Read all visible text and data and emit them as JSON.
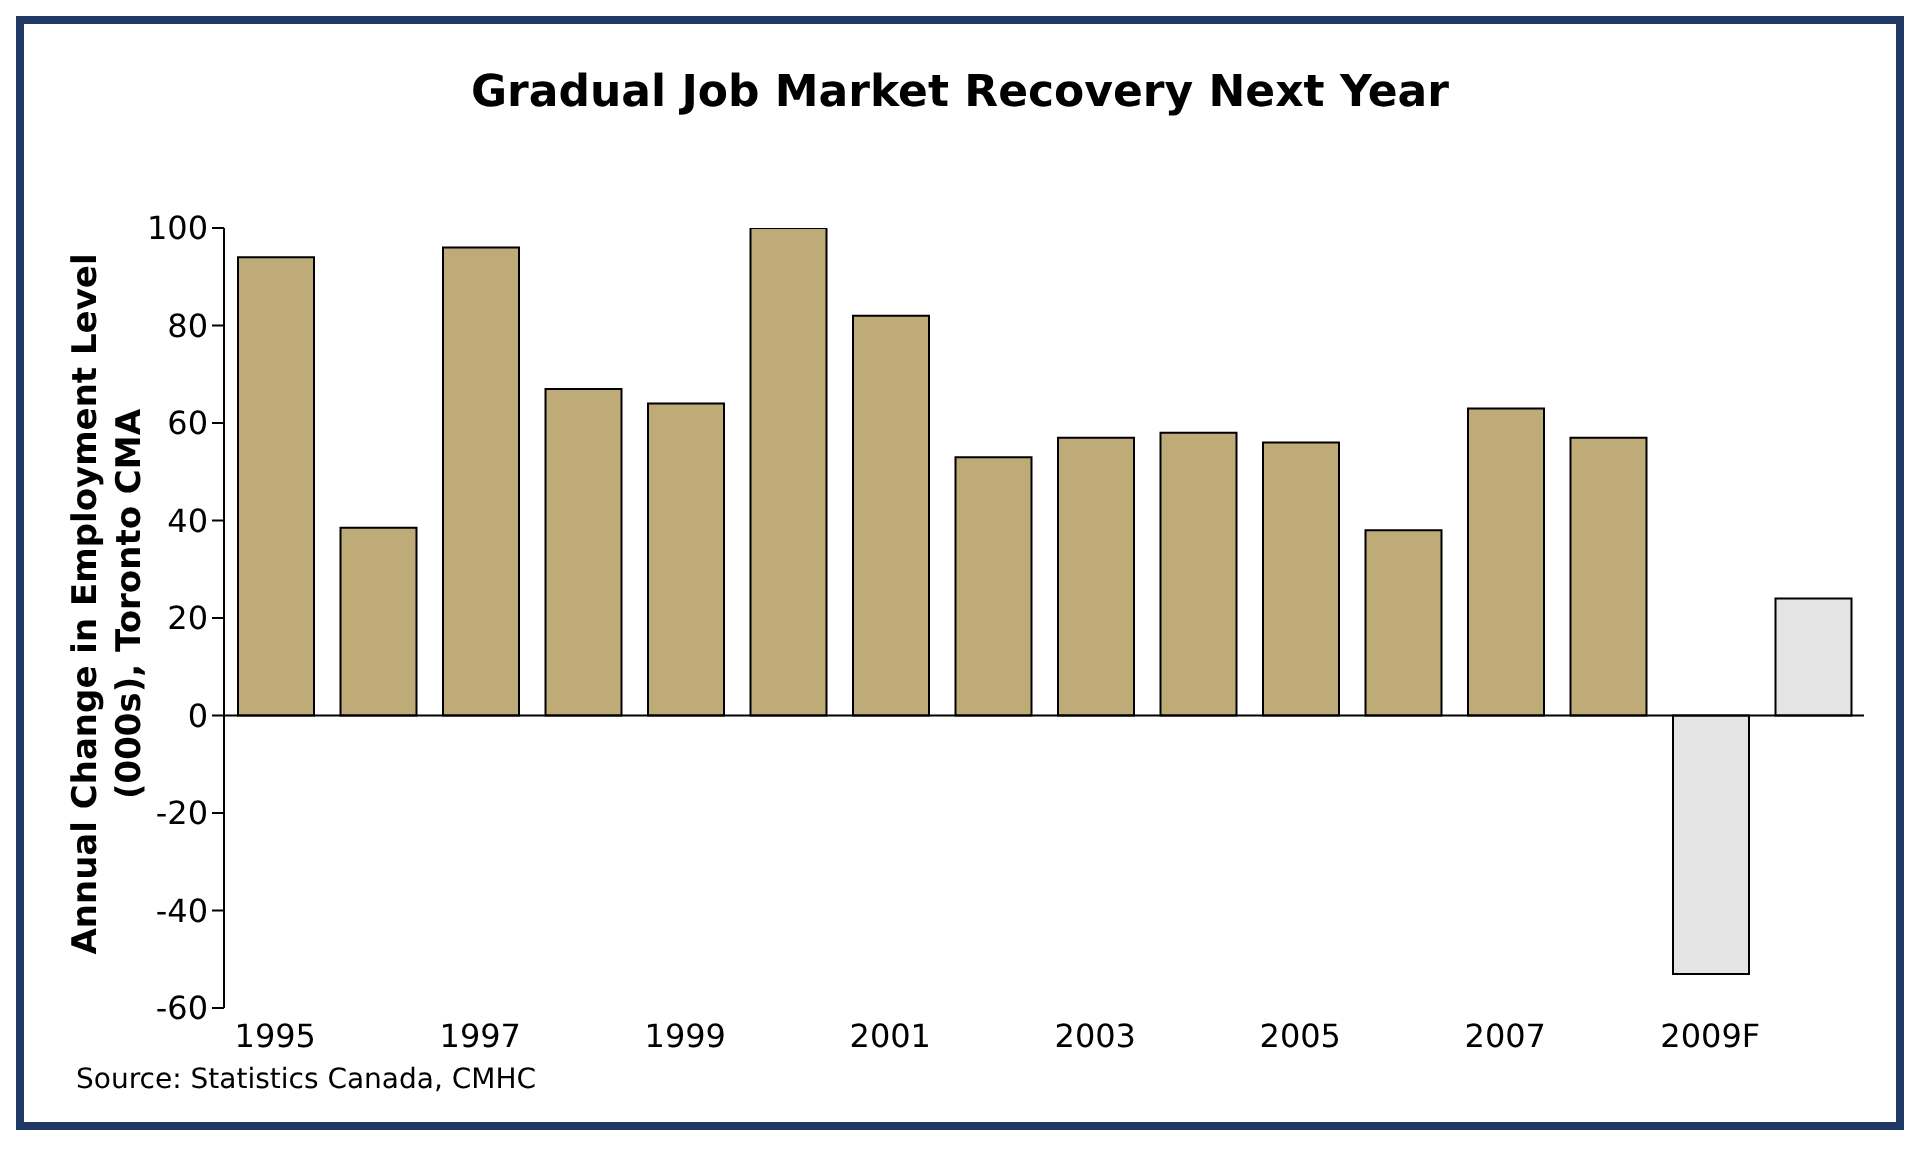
{
  "chart_data": {
    "type": "bar",
    "title": "Gradual Job Market Recovery Next Year",
    "ylabel": "Annual Change in Employment Level (000s), Toronto CMA",
    "categories": [
      "1995",
      null,
      "1997",
      null,
      "1999",
      null,
      "2001",
      null,
      "2003",
      null,
      "2005",
      null,
      "2007",
      null,
      "2009F",
      null
    ],
    "values": [
      94,
      38.5,
      96,
      67,
      64,
      100,
      82,
      53,
      57,
      58,
      56,
      38,
      63,
      57,
      -53,
      24
    ],
    "colors": [
      "#bfab78",
      "#bfab78",
      "#bfab78",
      "#bfab78",
      "#bfab78",
      "#bfab78",
      "#bfab78",
      "#bfab78",
      "#bfab78",
      "#bfab78",
      "#bfab78",
      "#bfab78",
      "#bfab78",
      "#bfab78",
      "#e4e4e4",
      "#e4e4e4"
    ],
    "ylim": [
      -60,
      100
    ],
    "yticks": [
      -60,
      -40,
      -20,
      0,
      20,
      40,
      60,
      80,
      100
    ],
    "annotations": [
      "Source: Statistics Canada, CMHC"
    ]
  }
}
